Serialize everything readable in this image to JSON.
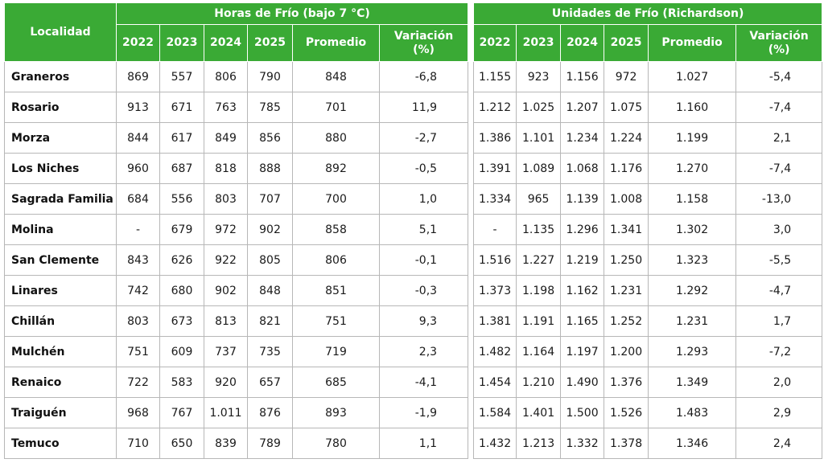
{
  "header": {
    "localidad": "Localidad",
    "group_hours": "Horas de Frío (bajo 7 °C)",
    "group_units": "Unidades de Frío (Richardson)",
    "hours_cols": [
      "2022",
      "2023",
      "2024",
      "2025",
      "Promedio",
      "Variación\n(%)"
    ],
    "units_cols": [
      "2022",
      "2023",
      "2024",
      "2025",
      "Promedio",
      "Variación\n(%)"
    ]
  },
  "rows": [
    {
      "loc": "Graneros",
      "hours": [
        "869",
        "557",
        "806",
        "790",
        "848",
        "-6,8"
      ],
      "units": [
        "1.155",
        "923",
        "1.156",
        "972",
        "1.027",
        "-5,4"
      ]
    },
    {
      "loc": "Rosario",
      "hours": [
        "913",
        "671",
        "763",
        "785",
        "701",
        "11,9"
      ],
      "units": [
        "1.212",
        "1.025",
        "1.207",
        "1.075",
        "1.160",
        "-7,4"
      ]
    },
    {
      "loc": "Morza",
      "hours": [
        "844",
        "617",
        "849",
        "856",
        "880",
        "-2,7"
      ],
      "units": [
        "1.386",
        "1.101",
        "1.234",
        "1.224",
        "1.199",
        "2,1"
      ]
    },
    {
      "loc": "Los Niches",
      "hours": [
        "960",
        "687",
        "818",
        "888",
        "892",
        "-0,5"
      ],
      "units": [
        "1.391",
        "1.089",
        "1.068",
        "1.176",
        "1.270",
        "-7,4"
      ]
    },
    {
      "loc": "Sagrada Familia",
      "hours": [
        "684",
        "556",
        "803",
        "707",
        "700",
        "1,0"
      ],
      "units": [
        "1.334",
        "965",
        "1.139",
        "1.008",
        "1.158",
        "-13,0"
      ]
    },
    {
      "loc": "Molina",
      "hours": [
        "-",
        "679",
        "972",
        "902",
        "858",
        "5,1"
      ],
      "units": [
        "-",
        "1.135",
        "1.296",
        "1.341",
        "1.302",
        "3,0"
      ]
    },
    {
      "loc": "San Clemente",
      "hours": [
        "843",
        "626",
        "922",
        "805",
        "806",
        "-0,1"
      ],
      "units": [
        "1.516",
        "1.227",
        "1.219",
        "1.250",
        "1.323",
        "-5,5"
      ]
    },
    {
      "loc": "Linares",
      "hours": [
        "742",
        "680",
        "902",
        "848",
        "851",
        "-0,3"
      ],
      "units": [
        "1.373",
        "1.198",
        "1.162",
        "1.231",
        "1.292",
        "-4,7"
      ]
    },
    {
      "loc": "Chillán",
      "hours": [
        "803",
        "673",
        "813",
        "821",
        "751",
        "9,3"
      ],
      "units": [
        "1.381",
        "1.191",
        "1.165",
        "1.252",
        "1.231",
        "1,7"
      ]
    },
    {
      "loc": "Mulchén",
      "hours": [
        "751",
        "609",
        "737",
        "735",
        "719",
        "2,3"
      ],
      "units": [
        "1.482",
        "1.164",
        "1.197",
        "1.200",
        "1.293",
        "-7,2"
      ]
    },
    {
      "loc": "Renaico",
      "hours": [
        "722",
        "583",
        "920",
        "657",
        "685",
        "-4,1"
      ],
      "units": [
        "1.454",
        "1.210",
        "1.490",
        "1.376",
        "1.349",
        "2,0"
      ]
    },
    {
      "loc": "Traiguén",
      "hours": [
        "968",
        "767",
        "1.011",
        "876",
        "893",
        "-1,9"
      ],
      "units": [
        "1.584",
        "1.401",
        "1.500",
        "1.526",
        "1.483",
        "2,9"
      ]
    },
    {
      "loc": "Temuco",
      "hours": [
        "710",
        "650",
        "839",
        "789",
        "780",
        "1,1"
      ],
      "units": [
        "1.432",
        "1.213",
        "1.332",
        "1.378",
        "1.346",
        "2,4"
      ]
    }
  ]
}
